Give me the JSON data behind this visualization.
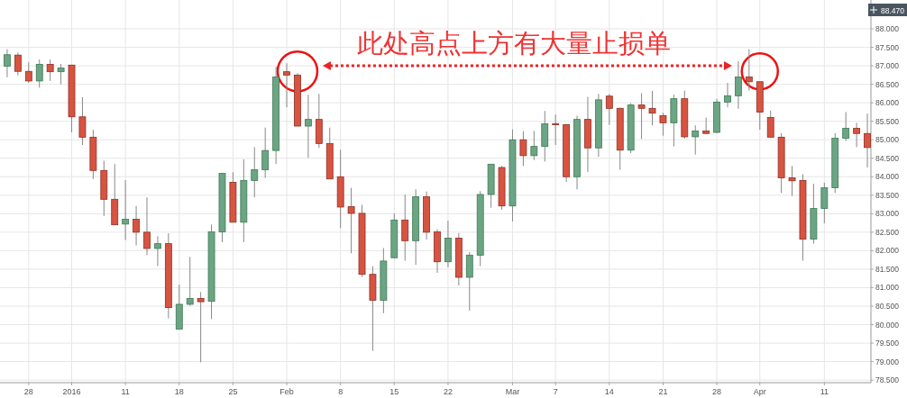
{
  "chart_data": {
    "type": "candlestick",
    "categories": [
      null,
      null,
      "28",
      null,
      null,
      null,
      "2016",
      null,
      null,
      null,
      null,
      "11",
      null,
      null,
      null,
      null,
      "18",
      null,
      null,
      null,
      null,
      "25",
      null,
      null,
      null,
      null,
      "Feb",
      null,
      null,
      null,
      null,
      "8",
      null,
      null,
      null,
      null,
      "15",
      null,
      null,
      null,
      null,
      "22",
      null,
      null,
      null,
      null,
      null,
      "Mar",
      null,
      null,
      null,
      "7",
      null,
      null,
      null,
      null,
      "14",
      null,
      null,
      null,
      null,
      "21",
      null,
      null,
      null,
      null,
      "28",
      null,
      null,
      null,
      "Apr",
      null,
      null,
      null,
      null,
      null,
      "11",
      null,
      null,
      null,
      null
    ],
    "ohlc": [
      [
        86.99,
        87.45,
        86.69,
        87.3
      ],
      [
        87.29,
        87.36,
        86.74,
        86.85
      ],
      [
        86.85,
        87.1,
        86.54,
        86.59
      ],
      [
        86.59,
        87.17,
        86.41,
        87.04
      ],
      [
        87.04,
        87.17,
        86.59,
        86.84
      ],
      [
        86.84,
        87.05,
        86.5,
        86.94
      ],
      [
        87.02,
        87.02,
        85.2,
        85.62
      ],
      [
        85.62,
        86.15,
        84.86,
        85.07
      ],
      [
        85.07,
        85.27,
        83.94,
        84.17
      ],
      [
        84.17,
        84.43,
        82.94,
        83.39
      ],
      [
        83.39,
        84.34,
        82.7,
        82.7
      ],
      [
        82.72,
        83.91,
        82.29,
        82.85
      ],
      [
        82.85,
        83.21,
        82.14,
        82.5
      ],
      [
        82.5,
        83.44,
        81.88,
        82.06
      ],
      [
        82.06,
        82.39,
        81.58,
        82.19
      ],
      [
        82.19,
        82.47,
        80.17,
        80.46
      ],
      [
        79.88,
        81.08,
        79.88,
        80.55
      ],
      [
        80.55,
        81.83,
        80.51,
        80.71
      ],
      [
        80.71,
        80.88,
        78.98,
        80.62
      ],
      [
        80.63,
        82.71,
        80.15,
        82.51
      ],
      [
        82.51,
        84.09,
        82.23,
        84.09
      ],
      [
        83.85,
        84.12,
        82.77,
        82.77
      ],
      [
        82.77,
        84.47,
        82.23,
        83.9
      ],
      [
        83.9,
        84.8,
        83.44,
        84.19
      ],
      [
        84.19,
        85.33,
        83.97,
        84.71
      ],
      [
        84.71,
        86.97,
        84.35,
        86.7
      ],
      [
        86.84,
        87.07,
        85.88,
        86.75
      ],
      [
        86.75,
        86.8,
        85.37,
        85.37
      ],
      [
        85.37,
        86.22,
        84.51,
        85.55
      ],
      [
        85.55,
        86.24,
        84.78,
        84.9
      ],
      [
        84.9,
        85.33,
        83.94,
        83.94
      ],
      [
        84.0,
        84.73,
        82.61,
        83.18
      ],
      [
        83.19,
        83.7,
        81.93,
        83.01
      ],
      [
        83.01,
        83.24,
        81.29,
        81.36
      ],
      [
        81.36,
        81.58,
        79.29,
        80.66
      ],
      [
        80.66,
        82.07,
        80.31,
        81.72
      ],
      [
        81.81,
        83.01,
        81.79,
        82.83
      ],
      [
        82.83,
        83.52,
        81.73,
        82.27
      ],
      [
        82.27,
        83.66,
        81.62,
        83.46
      ],
      [
        83.46,
        83.6,
        82.3,
        82.5
      ],
      [
        82.51,
        82.58,
        81.4,
        81.7
      ],
      [
        81.7,
        82.81,
        81.55,
        82.34
      ],
      [
        82.34,
        82.48,
        81.06,
        81.28
      ],
      [
        81.28,
        81.96,
        80.38,
        81.88
      ],
      [
        81.88,
        83.61,
        81.58,
        83.52
      ],
      [
        83.52,
        84.34,
        83.16,
        84.34
      ],
      [
        84.25,
        84.29,
        83.11,
        83.21
      ],
      [
        83.21,
        85.28,
        82.79,
        85.0
      ],
      [
        85.0,
        85.23,
        84.29,
        84.57
      ],
      [
        84.57,
        85.24,
        84.45,
        84.82
      ],
      [
        84.82,
        85.78,
        84.41,
        85.43
      ],
      [
        85.43,
        85.68,
        84.86,
        85.41
      ],
      [
        85.41,
        85.43,
        83.86,
        84.0
      ],
      [
        84.0,
        85.65,
        83.66,
        85.55
      ],
      [
        85.55,
        86.16,
        84.13,
        84.78
      ],
      [
        84.78,
        86.24,
        84.54,
        86.08
      ],
      [
        86.18,
        86.24,
        85.4,
        85.85
      ],
      [
        85.85,
        85.87,
        84.19,
        84.72
      ],
      [
        84.72,
        85.99,
        84.64,
        85.94
      ],
      [
        85.94,
        86.26,
        85.02,
        85.85
      ],
      [
        85.85,
        86.32,
        85.39,
        85.72
      ],
      [
        85.65,
        85.73,
        85.11,
        85.46
      ],
      [
        85.46,
        86.22,
        84.82,
        86.11
      ],
      [
        86.11,
        86.33,
        85.03,
        85.08
      ],
      [
        85.08,
        85.39,
        84.6,
        85.24
      ],
      [
        85.24,
        85.6,
        85.16,
        85.17
      ],
      [
        85.2,
        86.11,
        85.18,
        86.02
      ],
      [
        86.02,
        86.54,
        85.88,
        86.19
      ],
      [
        86.19,
        87.13,
        85.84,
        86.7
      ],
      [
        86.7,
        87.45,
        86.33,
        86.57
      ],
      [
        86.57,
        86.57,
        85.27,
        85.75
      ],
      [
        85.6,
        85.79,
        85.07,
        85.07
      ],
      [
        85.07,
        85.18,
        83.56,
        83.97
      ],
      [
        83.97,
        84.29,
        83.48,
        83.89
      ],
      [
        83.9,
        84.07,
        81.73,
        82.31
      ],
      [
        82.31,
        83.81,
        82.19,
        83.14
      ],
      [
        83.14,
        83.84,
        82.74,
        83.7
      ],
      [
        83.7,
        85.18,
        83.56,
        85.04
      ],
      [
        85.04,
        85.75,
        84.97,
        85.31
      ],
      [
        85.31,
        85.46,
        84.8,
        85.17
      ],
      [
        85.17,
        85.71,
        84.25,
        84.79
      ]
    ],
    "colors": [
      "#6ba583",
      "#d75442",
      "#d75442",
      "#6ba583",
      "#d75442",
      "#6ba583",
      "#d75442",
      "#d75442",
      "#d75442",
      "#d75442",
      "#d75442",
      "#6ba583",
      "#d75442",
      "#d75442",
      "#6ba583",
      "#d75442",
      "#6ba583",
      "#6ba583",
      "#d75442",
      "#6ba583",
      "#6ba583",
      "#d75442",
      "#6ba583",
      "#6ba583",
      "#6ba583",
      "#6ba583",
      "#d75442",
      "#d75442",
      "#6ba583",
      "#d75442",
      "#d75442",
      "#d75442",
      "#d75442",
      "#d75442",
      "#d75442",
      "#6ba583",
      "#6ba583",
      "#d75442",
      "#6ba583",
      "#d75442",
      "#d75442",
      "#6ba583",
      "#d75442",
      "#6ba583",
      "#6ba583",
      "#6ba583",
      "#d75442",
      "#6ba583",
      "#d75442",
      "#6ba583",
      "#6ba583",
      "#d75442",
      "#d75442",
      "#6ba583",
      "#d75442",
      "#6ba583",
      "#d75442",
      "#d75442",
      "#6ba583",
      "#d75442",
      "#d75442",
      "#d75442",
      "#6ba583",
      "#d75442",
      "#6ba583",
      "#d75442",
      "#6ba583",
      "#6ba583",
      "#6ba583",
      "#d75442",
      "#d75442",
      "#d75442",
      "#d75442",
      "#d75442",
      "#d75442",
      "#6ba583",
      "#6ba583",
      "#6ba583",
      "#6ba583",
      "#d75442",
      "#d75442"
    ],
    "ylim": [
      78.43,
      88.78
    ],
    "yticks": [
      {
        "value": 78.5,
        "label": "78.500"
      },
      {
        "value": 79,
        "label": "79.000"
      },
      {
        "value": 79.5,
        "label": "79.500"
      },
      {
        "value": 80,
        "label": "80.000"
      },
      {
        "value": 80.5,
        "label": "80.500"
      },
      {
        "value": 81,
        "label": "81.000"
      },
      {
        "value": 81.5,
        "label": "81.500"
      },
      {
        "value": 82,
        "label": "82.000"
      },
      {
        "value": 82.5,
        "label": "82.500"
      },
      {
        "value": 83,
        "label": "83.000"
      },
      {
        "value": 83.5,
        "label": "83.500"
      },
      {
        "value": 84,
        "label": "84.000"
      },
      {
        "value": 84.5,
        "label": "84.500"
      },
      {
        "value": 85,
        "label": "85.000"
      },
      {
        "value": 85.5,
        "label": "85.500"
      },
      {
        "value": 86,
        "label": "86.000"
      },
      {
        "value": 86.5,
        "label": "86.500"
      },
      {
        "value": 87,
        "label": "87.000"
      },
      {
        "value": 87.5,
        "label": "87.500"
      },
      {
        "value": 88,
        "label": "88.000"
      }
    ],
    "grid": true,
    "annotations": [
      "此处高点上方有大量止损单",
      "88.470"
    ]
  }
}
